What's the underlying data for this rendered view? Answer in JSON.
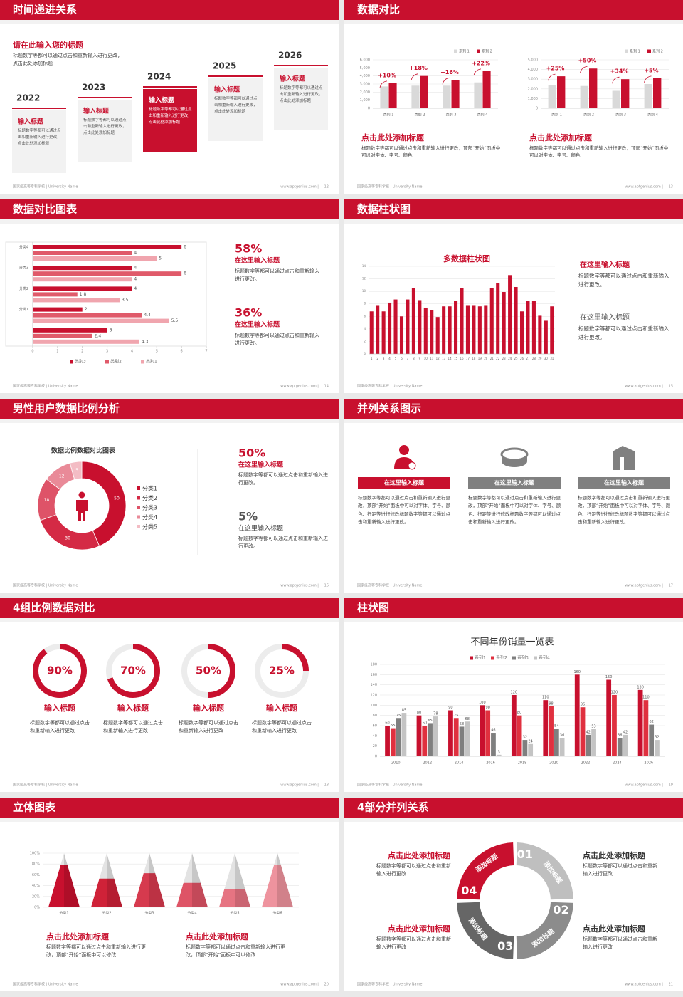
{
  "footer": {
    "school": "国家级高等专科学校 | University Name",
    "site": "www.aptgenius.com |"
  },
  "slides": [
    {
      "title": "时间递进关系",
      "page": "12",
      "intro": {
        "heading": "请在此输入您的标题",
        "text": "标题数字等都可以通过点击和重新输入进行更改，点击此处添加标题"
      },
      "steps": [
        {
          "year": "2022",
          "heading": "输入标题",
          "text": "标题数字等都可以通过点击和重新输入进行更改，点击此处添加标题"
        },
        {
          "year": "2023",
          "heading": "输入标题",
          "text": "标题数字等都可以通过点击和重新输入进行更改，点击此处添加标题"
        },
        {
          "year": "2024",
          "heading": "输入标题",
          "text": "标题数字等都可以通过点击和重新输入进行更改，点击此处添加标题"
        },
        {
          "year": "2025",
          "heading": "输入标题",
          "text": "标题数字等都可以通过点击和重新输入进行更改，点击此处添加标题"
        },
        {
          "year": "2026",
          "heading": "输入标题",
          "text": "标题数字等都可以通过点击和重新输入进行更改，点击此处添加标题"
        }
      ]
    },
    {
      "title": "数据对比",
      "page": "13",
      "charts": [
        {
          "type": "bar",
          "categories": [
            "类别 1",
            "类别 2",
            "类别 3",
            "类别 4"
          ],
          "series": [
            {
              "name": "系列 1",
              "color": "#d9d9d9",
              "values": [
                2700,
                2800,
                2800,
                3200
              ]
            },
            {
              "name": "系列 2",
              "color": "#c8102e",
              "values": [
                3100,
                4000,
                3500,
                4600
              ]
            }
          ],
          "ylim": [
            0,
            6000
          ],
          "yticks": [
            0,
            {
              "value": 1000,
              "label": "1,000"
            },
            {
              "value": 2000,
              "label": "2,000"
            },
            {
              "value": 3000,
              "label": "3,000"
            },
            {
              "value": 4000,
              "label": "4,000"
            },
            {
              "value": 5000,
              "label": "5,000"
            },
            {
              "value": 6000,
              "label": "6,000"
            }
          ],
          "grid": true,
          "annotations": [
            "+10%",
            "+18%",
            "+16%",
            "+22%"
          ]
        },
        {
          "type": "bar",
          "categories": [
            "类别 1",
            "类别 2",
            "类别 3",
            "类别 4"
          ],
          "series": [
            {
              "name": "系列 1",
              "color": "#d9d9d9",
              "values": [
                2400,
                2300,
                1800,
                2500
              ]
            },
            {
              "name": "系列 2",
              "color": "#c8102e",
              "values": [
                3300,
                4100,
                3000,
                3100
              ]
            }
          ],
          "ylim": [
            0,
            5000
          ],
          "yticks": [
            0,
            {
              "value": 1000,
              "label": "1,000"
            },
            {
              "value": 2000,
              "label": "2,000"
            },
            {
              "value": 3000,
              "label": "3,000"
            },
            {
              "value": 4000,
              "label": "4,000"
            },
            {
              "value": 5000,
              "label": "5,000"
            }
          ],
          "grid": true,
          "annotations": [
            "+25%",
            "+50%",
            "+34%",
            "+5%"
          ]
        }
      ],
      "blocks": [
        {
          "heading": "点击此处添加标题",
          "text": "标题数字等都可以通过点击和重新输入进行更改，顶部“开始”面板中可以对字体、字号、颜色"
        },
        {
          "heading": "点击此处添加标题",
          "text": "标题数字等都可以通过点击和重新输入进行更改，顶部“开始”面板中可以对字体、字号、颜色"
        }
      ]
    },
    {
      "title": "数据对比图表",
      "page": "14",
      "chart": {
        "type": "barh",
        "categories": [
          null,
          "分类1",
          "分类2",
          "分类3",
          "分类4"
        ],
        "series": [
          {
            "name": "类别3",
            "color": "#c8102e",
            "values": [
              3,
              2,
              4,
              4,
              6
            ]
          },
          {
            "name": "类别2",
            "color": "#e05a6a",
            "values": [
              2.4,
              4.4,
              1.8,
              6,
              4
            ]
          },
          {
            "name": "类别1",
            "color": "#f0a5ae",
            "values": [
              4.3,
              5.5,
              3.5,
              4,
              5
            ]
          }
        ],
        "xlim": [
          0,
          7
        ],
        "xticks": [
          0,
          1,
          2,
          3,
          4,
          5,
          6,
          7
        ]
      },
      "blocks": [
        {
          "value": "58%",
          "heading": "在这里输入标题",
          "text": "标题数字等都可以通过点击和重新输入进行更改。"
        },
        {
          "value": "36%",
          "heading": "在这里输入标题",
          "text": "标题数字等都可以通过点击和重新输入进行更改。"
        }
      ]
    },
    {
      "title": "数据柱状图",
      "page": "15",
      "chart": {
        "type": "bar",
        "title": "多数据柱状图",
        "categories": [
          "1",
          "2",
          "3",
          "4",
          "5",
          "6",
          "7",
          "8",
          "9",
          "10",
          "11",
          "12",
          "13",
          "14",
          "15",
          "16",
          "17",
          "18",
          "19",
          "20",
          "21",
          "22",
          "23",
          "24",
          "25",
          "26",
          "27",
          "28",
          "29",
          "30",
          "31"
        ],
        "values": [
          6.8,
          7.8,
          6.8,
          8.2,
          8.7,
          6.0,
          8.7,
          10.5,
          8.6,
          7.4,
          7.0,
          5.9,
          7.6,
          7.6,
          8.5,
          10.5,
          7.8,
          7.8,
          7.6,
          7.8,
          10.5,
          11.3,
          9.9,
          12.6,
          10.7,
          6.8,
          8.5,
          8.5,
          6.1,
          5.3,
          7.6
        ],
        "color": "#c8102e",
        "ylim": [
          0,
          14
        ],
        "yticks": [
          0,
          2,
          4,
          6,
          8,
          10,
          12,
          14
        ],
        "grid": true
      },
      "blocks": [
        {
          "heading": "在这里输入标题",
          "text": "标题数字等都可以通过点击和重新输入进行更改。"
        },
        {
          "heading": "在这里输入标题",
          "text": "标题数字等都可以通过点击和重新输入进行更改。"
        }
      ]
    },
    {
      "title": "男性用户数据比例分析",
      "page": "16",
      "chart": {
        "type": "donut",
        "title": "数据比例数据对比图表",
        "categories": [
          "分类1",
          "分类2",
          "分类3",
          "分类4",
          "分类5"
        ],
        "values": [
          50,
          30,
          18,
          12,
          5
        ],
        "colors": [
          "#c8102e",
          "#d42a45",
          "#de5368",
          "#e98a98",
          "#f3bcc4"
        ]
      },
      "blocks": [
        {
          "value": "50%",
          "heading": "在这里输入标题",
          "text": "标题数字等都可以通过点击和重新输入进行更改。"
        },
        {
          "value": "5%",
          "heading": "在这里输入标题",
          "text": "标题数字等都可以通过点击和重新输入进行更改。"
        }
      ]
    },
    {
      "title": "并列关系图示",
      "page": "17",
      "items": [
        {
          "heading": "在这里输入标题",
          "text": "标题数字等都可以通过点击和重新输入进行更改，顶部“开始”面板中可以对字体、字号、颜色、行距等进行修改标题数字等都可以通过点击和重新输入进行更改。"
        },
        {
          "heading": "在这里输入标题",
          "text": "标题数字等都可以通过点击和重新输入进行更改，顶部“开始”面板中可以对字体、字号、颜色、行距等进行修改标题数字等都可以通过点击和重新输入进行更改。"
        },
        {
          "heading": "在这里输入标题",
          "text": "标题数字等都可以通过点击和重新输入进行更改，顶部“开始”面板中可以对字体、字号、颜色、行距等进行修改标题数字等都可以通过点击和重新输入进行更改。"
        }
      ]
    },
    {
      "title": "4组比例数据对比",
      "page": "18",
      "items": [
        {
          "value": 90,
          "label": "90%",
          "heading": "输入标题",
          "text": "标题数字等都可以通过点击和重新输入进行更改"
        },
        {
          "value": 70,
          "label": "70%",
          "heading": "输入标题",
          "text": "标题数字等都可以通过点击和重新输入进行更改"
        },
        {
          "value": 50,
          "label": "50%",
          "heading": "输入标题",
          "text": "标题数字等都可以通过点击和重新输入进行更改"
        },
        {
          "value": 25,
          "label": "25%",
          "heading": "输入标题",
          "text": "标题数字等都可以通过点击和重新输入进行更改"
        }
      ]
    },
    {
      "title": "柱状图",
      "page": "19",
      "chart": {
        "type": "bar",
        "title": "不同年份销量一览表",
        "categories": [
          "2010",
          "2012",
          "2014",
          "2016",
          "2018",
          "2020",
          "2022",
          "2024",
          "2026"
        ],
        "series": [
          {
            "name": "系列1",
            "color": "#c8102e",
            "values": [
              60,
              80,
              90,
              100,
              120,
              110,
              160,
              150,
              130
            ]
          },
          {
            "name": "系列2",
            "color": "#e0303f",
            "values": [
              55,
              60,
              75,
              90,
              80,
              98,
              96,
              120,
              110
            ]
          },
          {
            "name": "系列3",
            "color": "#7f7f7f",
            "values": [
              75,
              65,
              58,
              46,
              32,
              54,
              42,
              36,
              62
            ]
          },
          {
            "name": "系列4",
            "color": "#c4c4c4",
            "values": [
              85,
              78,
              68,
              3,
              24,
              36,
              53,
              42,
              32
            ]
          }
        ],
        "ylim": [
          0,
          180
        ],
        "yticks": [
          0,
          20,
          40,
          60,
          80,
          100,
          120,
          140,
          160,
          180
        ],
        "grid": true
      }
    },
    {
      "title": "立体图表",
      "page": "20",
      "chart": {
        "type": "cone",
        "categories": [
          "分类1",
          "分类2",
          "分类3",
          "分类4",
          "分类5",
          "分类6"
        ],
        "values": [
          78,
          53,
          63,
          45,
          34,
          79
        ],
        "colors": [
          "#c8102e",
          "#cf2238",
          "#d63a4e",
          "#de5466",
          "#e67482",
          "#ee939e"
        ],
        "ylim": [
          0,
          100
        ],
        "yticks": [
          {
            "value": 0,
            "label": "0%"
          },
          {
            "value": 20,
            "label": "20%"
          },
          {
            "value": 40,
            "label": "40%"
          },
          {
            "value": 60,
            "label": "60%"
          },
          {
            "value": 80,
            "label": "80%"
          },
          {
            "value": 100,
            "label": "100%"
          }
        ],
        "grid": true
      },
      "blocks": [
        {
          "heading": "点击此处添加标题",
          "text": "标题数字等都可以通过点击和重新输入进行更改，顶部“开始”面板中可以修改"
        },
        {
          "heading": "点击此处添加标题",
          "text": "标题数字等都可以通过点击和重新输入进行更改，顶部“开始”面板中可以修改"
        }
      ]
    },
    {
      "title": "4部分并列关系",
      "page": "21",
      "segments": [
        {
          "number": "01",
          "label": "添加标题"
        },
        {
          "number": "02",
          "label": "添加标题"
        },
        {
          "number": "03",
          "label": "添加标题"
        },
        {
          "number": "04",
          "label": "添加标题"
        }
      ],
      "blocks": [
        {
          "heading": "点击此处添加标题",
          "text": "标题数字等都可以通过点击和重新输入进行更改"
        },
        {
          "heading": "点击此处添加标题",
          "text": "标题数字等都可以通过点击和重新输入进行更改"
        },
        {
          "heading": "点击此处添加标题",
          "text": "标题数字等都可以通过点击和重新输入进行更改"
        },
        {
          "heading": "点击此处添加标题",
          "text": "标题数字等都可以通过点击和重新输入进行更改"
        }
      ]
    }
  ]
}
